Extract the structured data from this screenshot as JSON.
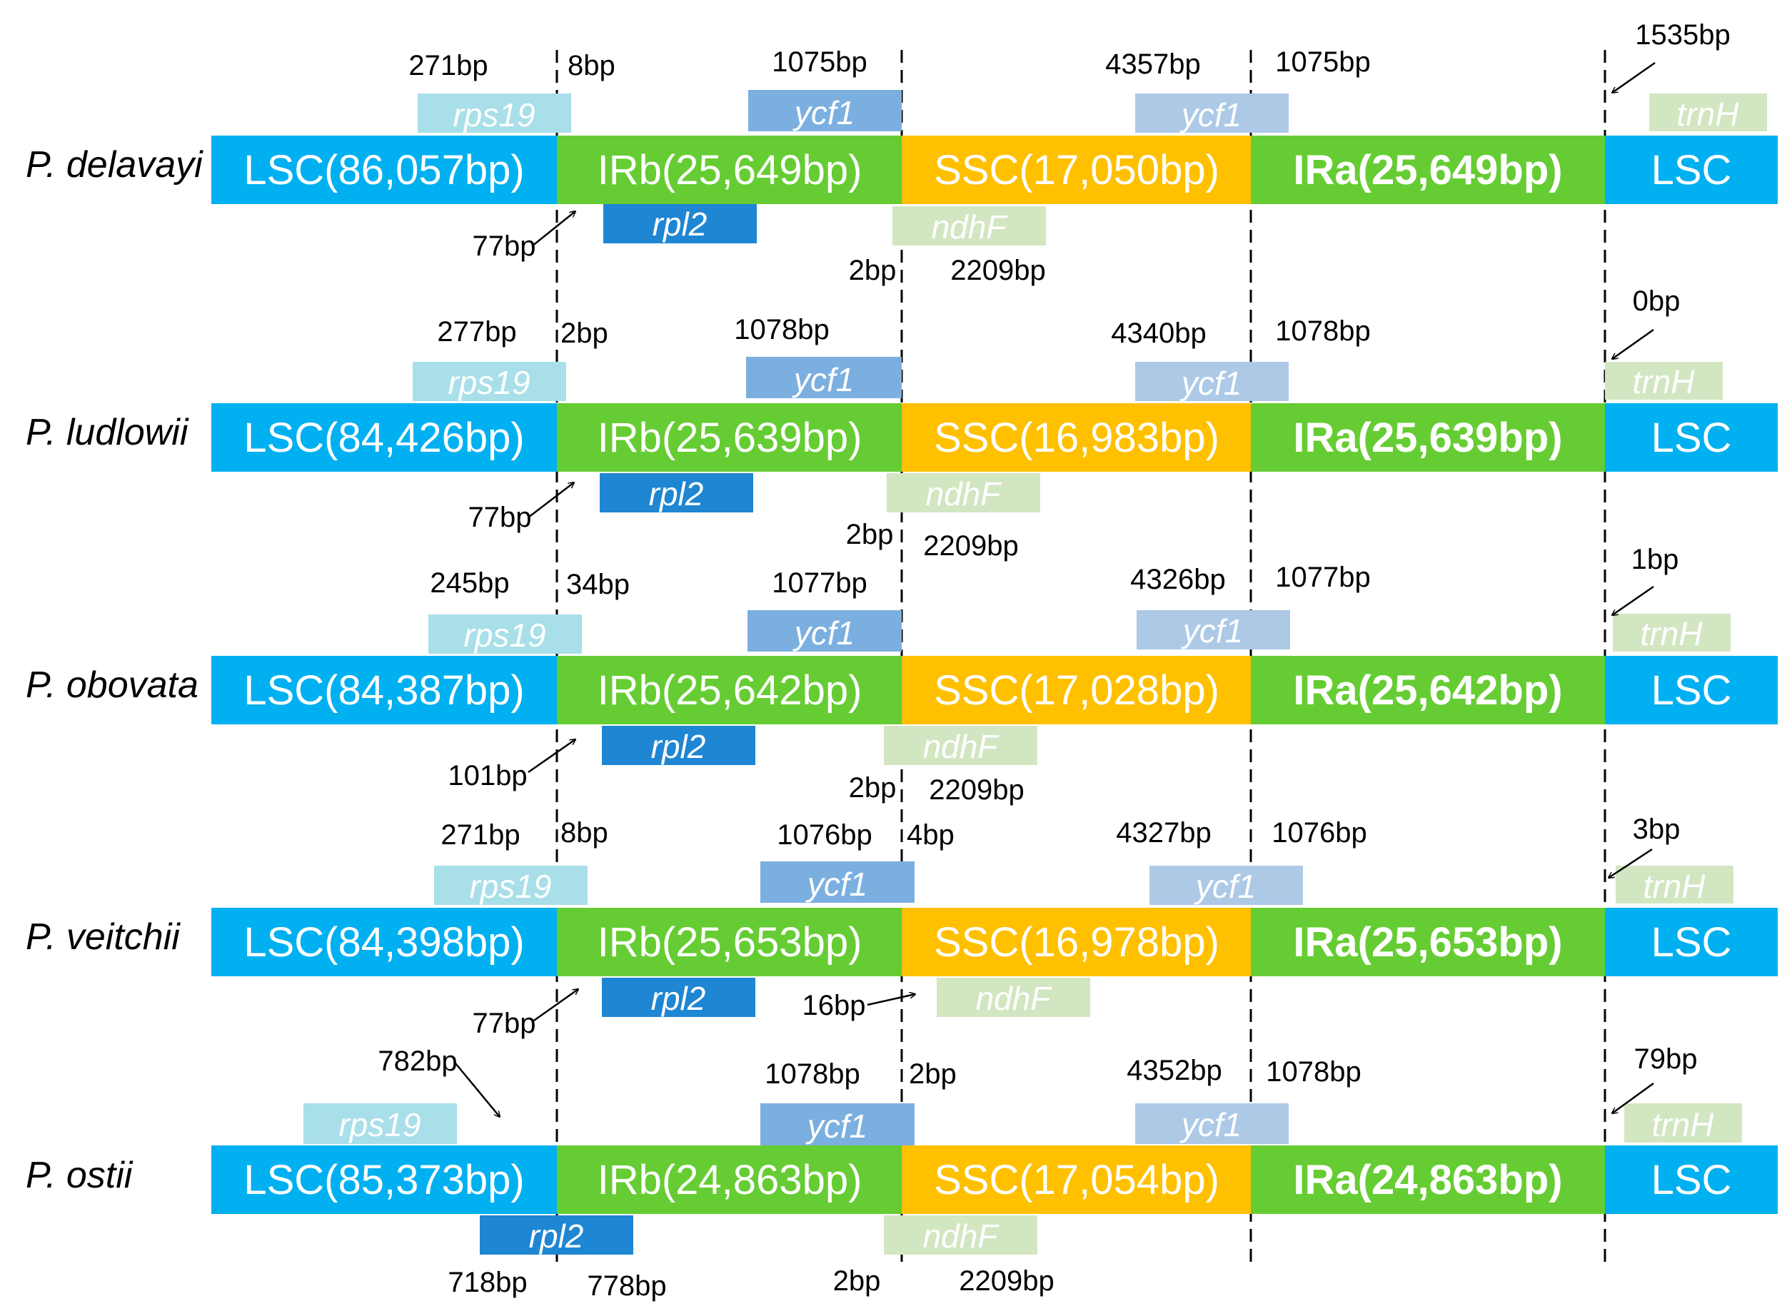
{
  "colors": {
    "LSC": "#00b0f0",
    "IR": "#66cc33",
    "SSC": "#ffc000",
    "rps19": "#a9dfe9",
    "ycf1_irb": "#7bafe0",
    "ycf1_ira": "#adc9e6",
    "rpl2": "#1e86d2",
    "ndhF": "#d3e6c2",
    "trnH": "#d3e6c2"
  },
  "species": [
    {
      "name": "P. delavayi",
      "segments": {
        "lsc": "LSC(86,057bp)",
        "irb": "IRb(25,649bp)",
        "ssc": "SSC(17,050bp)",
        "ira": "IRa(25,649bp)",
        "lsc_end": "LSC"
      },
      "genes": {
        "rps19": "rps19",
        "ycf1_irb": "ycf1",
        "ycf1_ira": "ycf1",
        "trnH": "trnH",
        "rpl2": "rpl2",
        "ndhF": "ndhF"
      },
      "bp": {
        "rps19": "271bp",
        "jlb_ir": "8bp",
        "ycf1_irb": "1075bp",
        "ycf1_ssc": "4357bp",
        "ycf1_ira": "1075bp",
        "trnH": "1535bp",
        "rpl2": "77bp",
        "ndhF_left": "2bp",
        "ndhF_right": "2209bp"
      }
    },
    {
      "name": "P. ludlowii",
      "segments": {
        "lsc": "LSC(84,426bp)",
        "irb": "IRb(25,639bp)",
        "ssc": "SSC(16,983bp)",
        "ira": "IRa(25,639bp)",
        "lsc_end": "LSC"
      },
      "genes": {
        "rps19": "rps19",
        "ycf1_irb": "ycf1",
        "ycf1_ira": "ycf1",
        "trnH": "trnH",
        "rpl2": "rpl2",
        "ndhF": "ndhF"
      },
      "bp": {
        "rps19": "277bp",
        "jlb_ir": "2bp",
        "ycf1_irb": "1078bp",
        "ycf1_ssc": "4340bp",
        "ycf1_ira": "1078bp",
        "trnH": "0bp",
        "rpl2": "77bp",
        "ndhF_left": "2bp",
        "ndhF_right": "2209bp"
      }
    },
    {
      "name": "P. obovata",
      "segments": {
        "lsc": "LSC(84,387bp)",
        "irb": "IRb(25,642bp)",
        "ssc": "SSC(17,028bp)",
        "ira": "IRa(25,642bp)",
        "lsc_end": "LSC"
      },
      "genes": {
        "rps19": "rps19",
        "ycf1_irb": "ycf1",
        "ycf1_ira": "ycf1",
        "trnH": "trnH",
        "rpl2": "rpl2",
        "ndhF": "ndhF"
      },
      "bp": {
        "rps19": "245bp",
        "jlb_ir": "34bp",
        "ycf1_irb": "1077bp",
        "ycf1_ssc": "4326bp",
        "ycf1_ira": "1077bp",
        "trnH": "1bp",
        "rpl2": "101bp",
        "ndhF_left": "2bp",
        "ndhF_right": "2209bp"
      }
    },
    {
      "name": "P. veitchii",
      "segments": {
        "lsc": "LSC(84,398bp)",
        "irb": "IRb(25,653bp)",
        "ssc": "SSC(16,978bp)",
        "ira": "IRa(25,653bp)",
        "lsc_end": "LSC"
      },
      "genes": {
        "rps19": "rps19",
        "ycf1_irb": "ycf1",
        "ycf1_ira": "ycf1",
        "trnH": "trnH",
        "rpl2": "rpl2",
        "ndhF": "ndhF"
      },
      "bp": {
        "rps19": "271bp",
        "jlb_ir": "8bp",
        "ycf1_irb": "1076bp",
        "ycf1_jsb": "4bp",
        "ycf1_ssc": "4327bp",
        "ycf1_ira": "1076bp",
        "trnH": "3bp",
        "rpl2": "77bp",
        "ndhF": "16bp"
      }
    },
    {
      "name": "P. ostii",
      "segments": {
        "lsc": "LSC(85,373bp)",
        "irb": "IRb(24,863bp)",
        "ssc": "SSC(17,054bp)",
        "ira": "IRa(24,863bp)",
        "lsc_end": "LSC"
      },
      "genes": {
        "rps19": "rps19",
        "ycf1_irb": "ycf1",
        "ycf1_ira": "ycf1",
        "trnH": "trnH",
        "rpl2": "rpl2",
        "ndhF": "ndhF"
      },
      "bp": {
        "rps19": "782bp",
        "ycf1_irb": "1078bp",
        "ycf1_jsb": "2bp",
        "ycf1_ssc": "4352bp",
        "ycf1_ira": "1078bp",
        "trnH": "79bp",
        "rpl2_left": "718bp",
        "rpl2_right": "778bp",
        "ndhF_left": "2bp",
        "ndhF_right": "2209bp"
      }
    }
  ]
}
